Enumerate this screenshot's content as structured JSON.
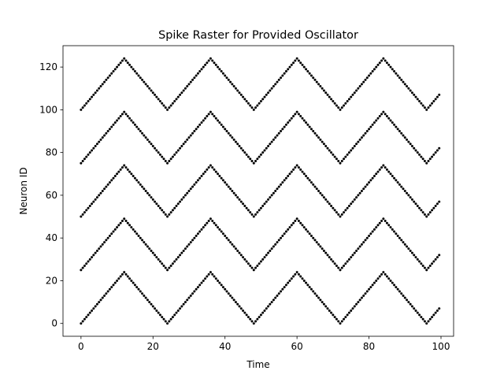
{
  "chart_data": {
    "type": "scatter",
    "title": "Spike Raster for Provided Oscillator",
    "xlabel": "Time",
    "ylabel": "Neuron ID",
    "xlim": [
      -5,
      103.5
    ],
    "ylim": [
      -6,
      130
    ],
    "xticks": [
      0,
      20,
      40,
      60,
      80,
      100
    ],
    "yticks": [
      0,
      20,
      40,
      60,
      80,
      100,
      120
    ],
    "grid": false,
    "legend": "none",
    "marker_color": "#000000",
    "series": [
      {
        "pattern": "zigzag-wave",
        "neurons": 125,
        "groups": 5,
        "group_size": 25,
        "steps_per_neuron": 0.5,
        "t_start": 0,
        "t_end": 99.5,
        "time_step": 0.5
      }
    ]
  }
}
